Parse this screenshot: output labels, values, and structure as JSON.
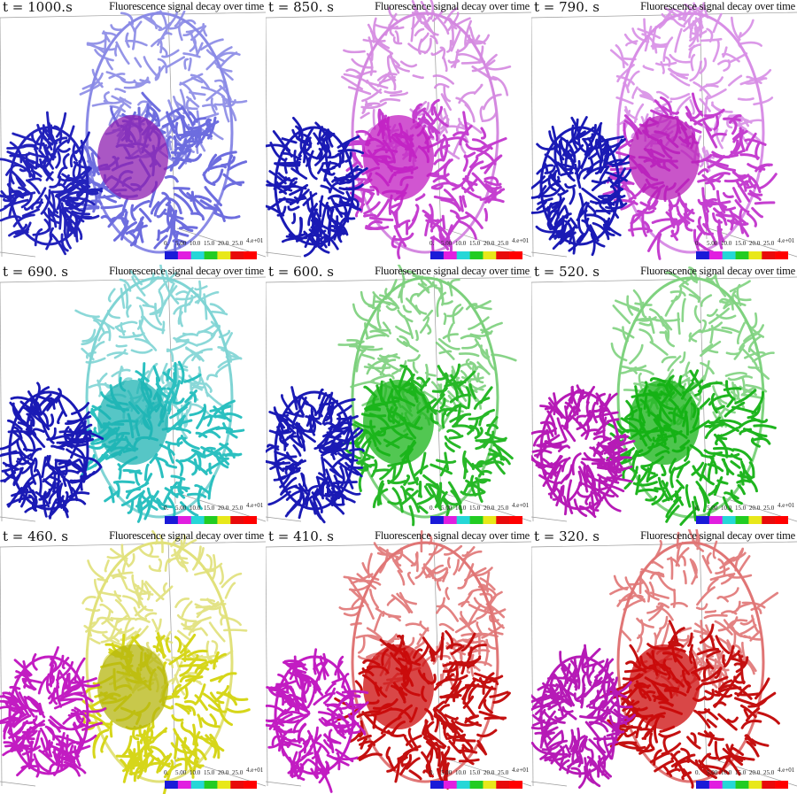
{
  "title": "Fluorescence signal decay over time",
  "colorbar": {
    "ticks": [
      "0.",
      "5.00",
      "10.0",
      "15.0",
      "20.0",
      "25.0"
    ],
    "max_label": "4.e+01",
    "colors": [
      "#1a1ad8",
      "#e11ee0",
      "#25d7d7",
      "#22cc22",
      "#e8e81a",
      "#e80a0a",
      "#ff0000"
    ]
  },
  "panels": [
    {
      "time": "t = 1000.s",
      "cell_color": "#2222bb",
      "blob_color": "#8e1fb0",
      "cage_color": "#6d6ddf",
      "cage_top_color": "#8a8ae6"
    },
    {
      "time": "t = 850. s",
      "cell_color": "#1a1ab5",
      "blob_color": "#c21cc2",
      "cage_color": "#c53fd0",
      "cage_top_color": "#d488e0"
    },
    {
      "time": "t = 790. s",
      "cell_color": "#1a1ab5",
      "blob_color": "#b71cb7",
      "cage_color": "#c53fd0",
      "cage_top_color": "#d88ee6"
    },
    {
      "time": "t = 690. s",
      "cell_color": "#1a1ab5",
      "blob_color": "#1db3b3",
      "cage_color": "#2bc0c0",
      "cage_top_color": "#7fd4d4"
    },
    {
      "time": "t = 600. s",
      "cell_color": "#1a1ab5",
      "blob_color": "#18b418",
      "cage_color": "#27b827",
      "cage_top_color": "#7cd07c"
    },
    {
      "time": "t = 520. s",
      "cell_color": "#b61ab6",
      "blob_color": "#13b213",
      "cage_color": "#1fb51f",
      "cage_top_color": "#7fd27f"
    },
    {
      "time": "t = 460. s",
      "cell_color": "#c21cc2",
      "blob_color": "#b5b50f",
      "cage_color": "#d6d61a",
      "cage_top_color": "#e1e17a"
    },
    {
      "time": "t = 410. s",
      "cell_color": "#c21cc2",
      "blob_color": "#cc0a0a",
      "cage_color": "#c41010",
      "cage_top_color": "#e07575"
    },
    {
      "time": "t = 320. s",
      "cell_color": "#b61ab6",
      "blob_color": "#cc0a0a",
      "cage_color": "#c41010",
      "cage_top_color": "#e07575"
    }
  ]
}
